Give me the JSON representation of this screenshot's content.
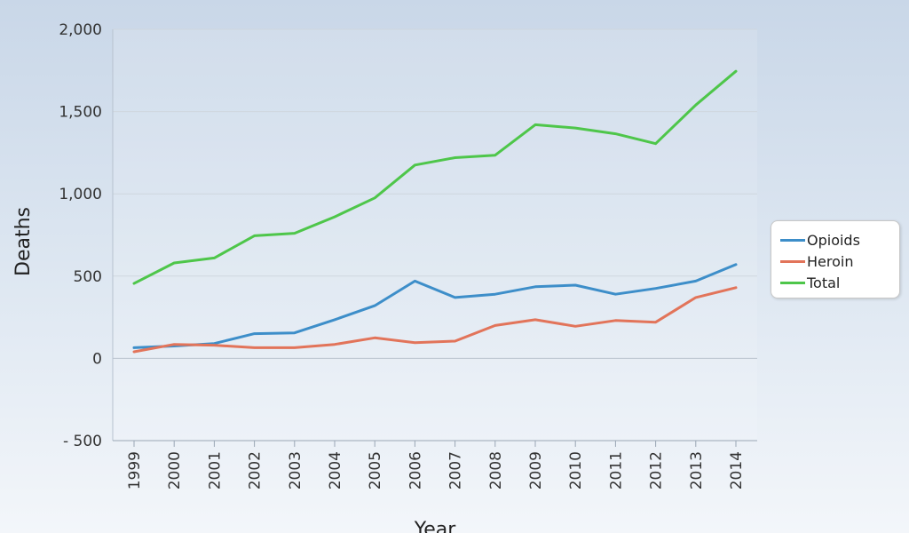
{
  "chart_data": {
    "type": "line",
    "xlabel": "Year",
    "ylabel": "Deaths",
    "x": [
      1999,
      2000,
      2001,
      2002,
      2003,
      2004,
      2005,
      2006,
      2007,
      2008,
      2009,
      2010,
      2011,
      2012,
      2013,
      2014
    ],
    "x_tick_labels": [
      "1999",
      "2000",
      "2001",
      "2002",
      "2003",
      "2004",
      "2005",
      "2006",
      "2007",
      "2008",
      "2009",
      "2010",
      "2011",
      "2012",
      "2013",
      "2014"
    ],
    "ylim": [
      -500,
      2000
    ],
    "y_ticks": [
      -500,
      0,
      500,
      1000,
      1500,
      2000
    ],
    "y_tick_labels": [
      "- 500",
      "0",
      "500",
      "1,000",
      "1,500",
      "2,000"
    ],
    "grid": true,
    "legend_position": "right",
    "series": [
      {
        "name": "Opioids",
        "color": "#3d8ec9",
        "values": [
          65,
          75,
          90,
          150,
          155,
          235,
          320,
          470,
          370,
          390,
          435,
          445,
          390,
          425,
          470,
          570
        ]
      },
      {
        "name": "Heroin",
        "color": "#e2745a",
        "values": [
          40,
          85,
          80,
          65,
          65,
          85,
          125,
          95,
          105,
          200,
          235,
          195,
          230,
          220,
          370,
          430
        ]
      },
      {
        "name": "Total",
        "color": "#4ec64a",
        "values": [
          455,
          580,
          610,
          745,
          760,
          860,
          975,
          1175,
          1220,
          1235,
          1420,
          1400,
          1365,
          1305,
          1540,
          1745
        ]
      }
    ]
  }
}
